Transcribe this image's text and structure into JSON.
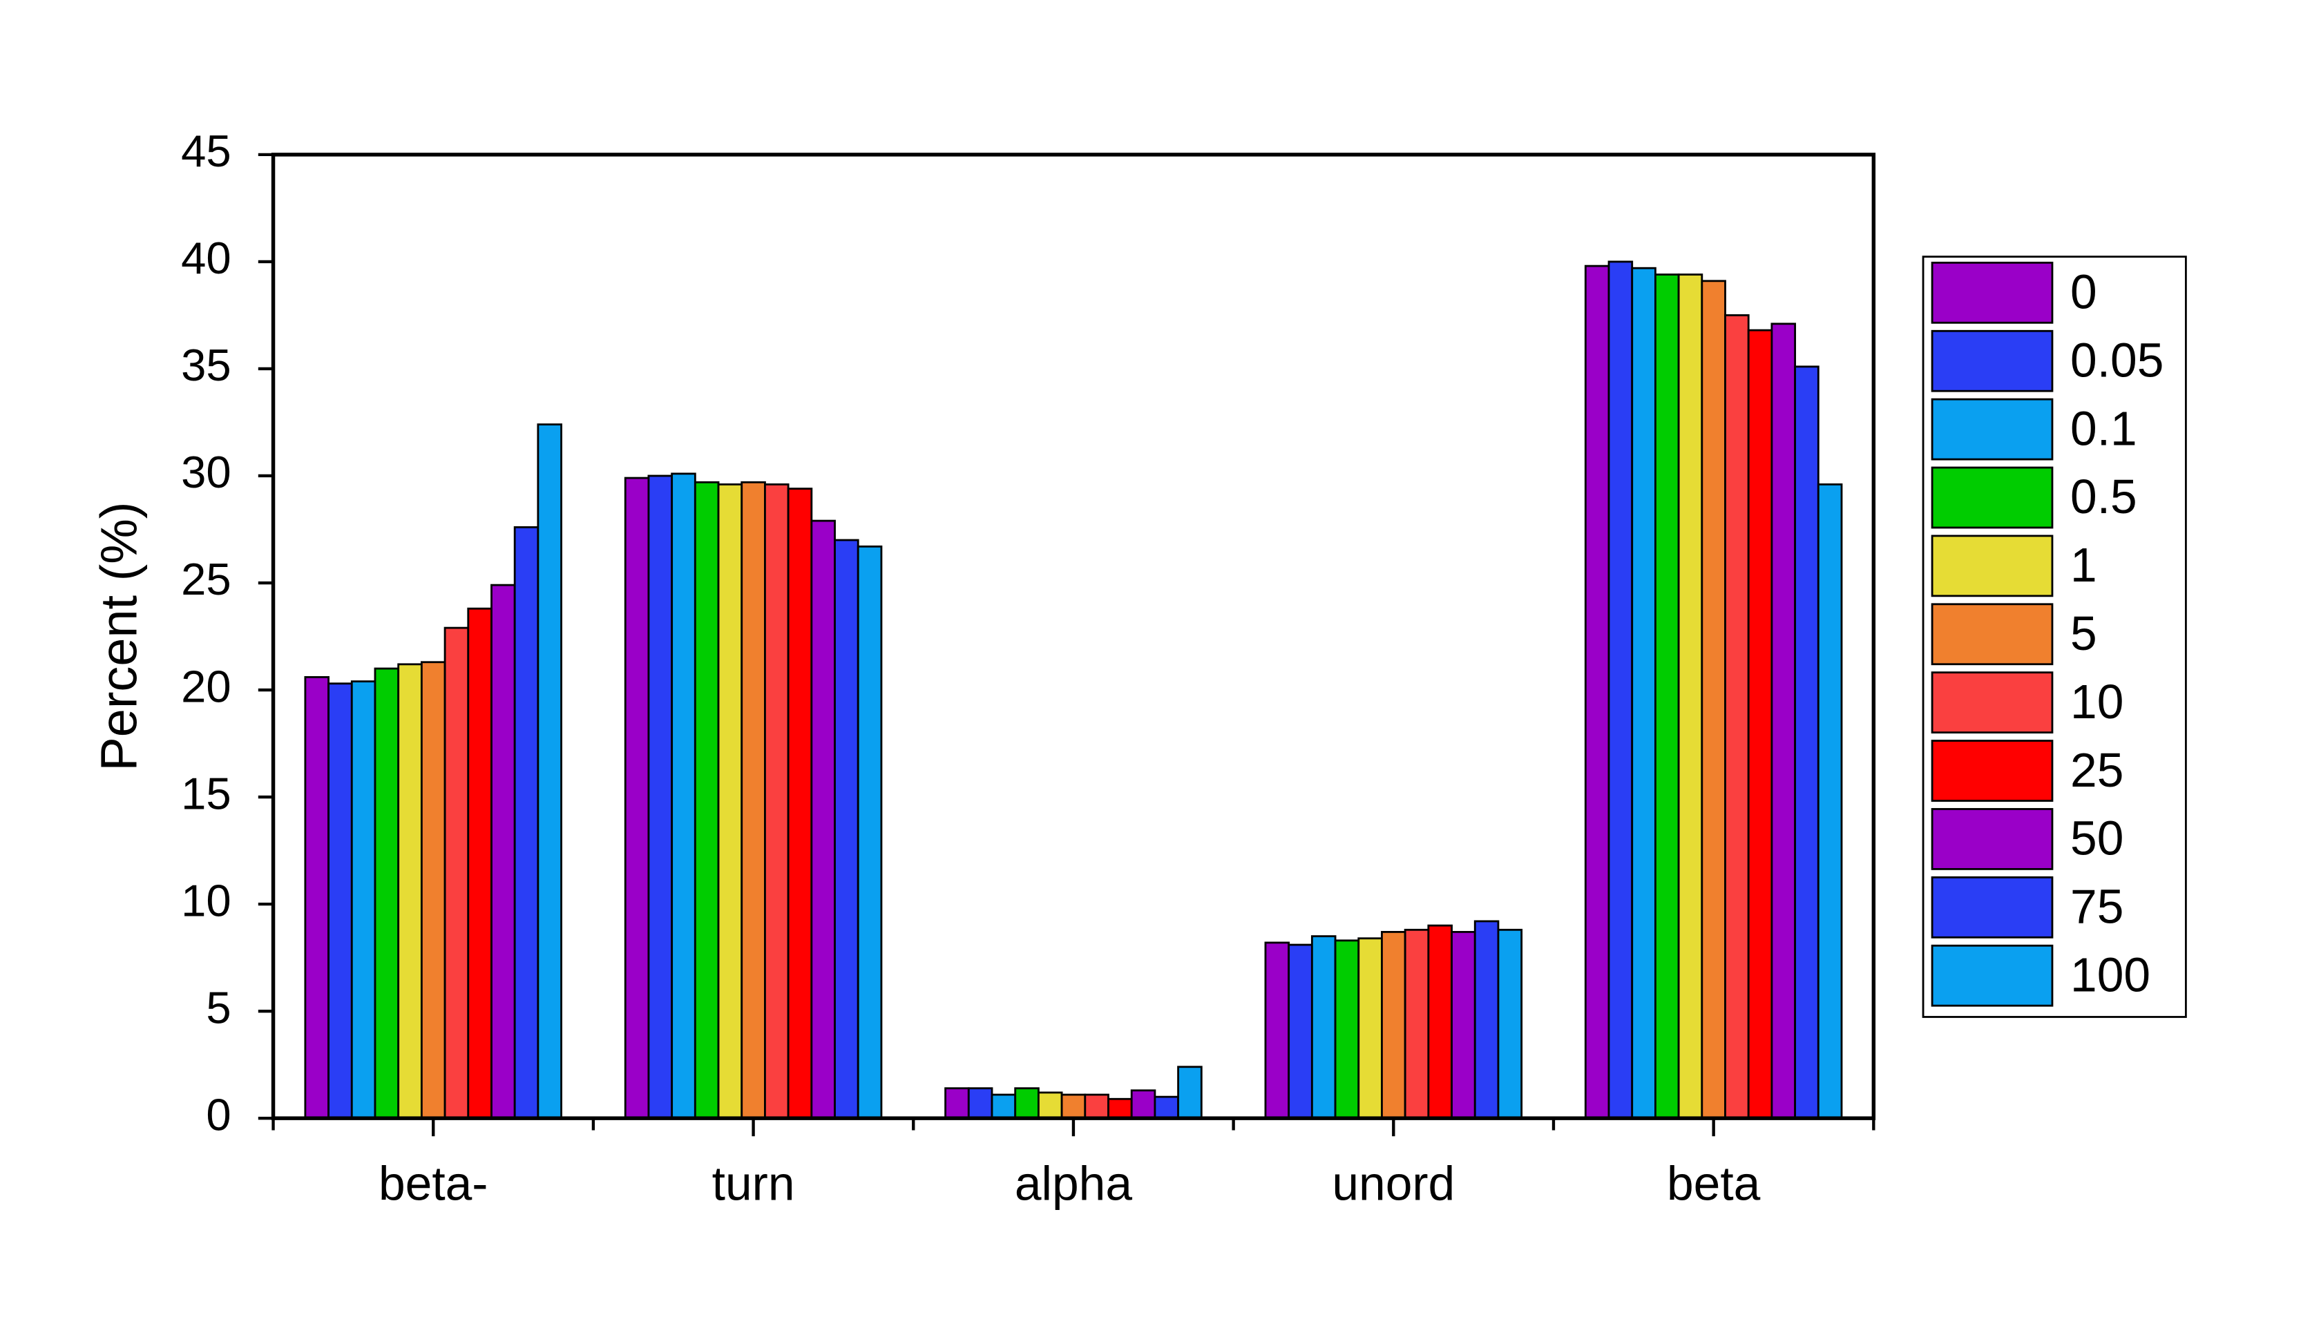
{
  "chart_data": {
    "type": "bar",
    "y_label": "Percent (%)",
    "categories": [
      "beta-",
      "turn",
      "alpha",
      "unord",
      "beta"
    ],
    "ylim": [
      0,
      45
    ],
    "yticks": [
      0,
      5,
      10,
      15,
      20,
      25,
      30,
      35,
      40,
      45
    ],
    "legend_position": "right",
    "series": [
      {
        "name": "0",
        "color": "#9a00c8",
        "values": [
          20.6,
          29.9,
          1.4,
          8.2,
          39.8
        ]
      },
      {
        "name": "0.05",
        "color": "#2a3ef5",
        "values": [
          20.3,
          30.0,
          1.4,
          8.1,
          40.0
        ]
      },
      {
        "name": "0.1",
        "color": "#0aa0f0",
        "values": [
          20.4,
          30.1,
          1.1,
          8.5,
          39.7
        ]
      },
      {
        "name": "0.5",
        "color": "#00cc00",
        "values": [
          21.0,
          29.7,
          1.4,
          8.3,
          39.4
        ]
      },
      {
        "name": "1",
        "color": "#e6dc35",
        "values": [
          21.2,
          29.6,
          1.2,
          8.4,
          39.4
        ]
      },
      {
        "name": "5",
        "color": "#f0802e",
        "values": [
          21.3,
          29.7,
          1.1,
          8.7,
          39.1
        ]
      },
      {
        "name": "10",
        "color": "#fa4040",
        "values": [
          22.9,
          29.6,
          1.1,
          8.8,
          37.5
        ]
      },
      {
        "name": "25",
        "color": "#ff0000",
        "values": [
          23.8,
          29.4,
          0.9,
          9.0,
          36.8
        ]
      },
      {
        "name": "50",
        "color": "#9a00c8",
        "values": [
          24.9,
          27.9,
          1.3,
          8.7,
          37.1
        ]
      },
      {
        "name": "75",
        "color": "#2a3ef5",
        "values": [
          27.6,
          27.0,
          1.0,
          9.2,
          35.1
        ]
      },
      {
        "name": "100",
        "color": "#0aa0f0",
        "values": [
          32.4,
          26.7,
          2.4,
          8.8,
          29.6
        ]
      }
    ]
  }
}
